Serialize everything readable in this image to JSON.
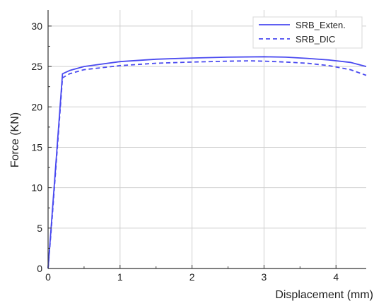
{
  "chart_data": {
    "type": "line",
    "xlabel": "Displacement (mm)",
    "ylabel": "Force (KN)",
    "xlim": [
      0,
      4.42
    ],
    "ylim": [
      0,
      32
    ],
    "x_ticks": [
      0,
      1,
      2,
      3,
      4
    ],
    "y_ticks": [
      0,
      5,
      10,
      15,
      20,
      25,
      30
    ],
    "grid": true,
    "legend_position": "top-right",
    "color": "#4a4af0",
    "series": [
      {
        "name": "SRB_Exten.",
        "style": "solid",
        "points": [
          [
            0,
            0
          ],
          [
            0.05,
            6.0
          ],
          [
            0.1,
            12.0
          ],
          [
            0.15,
            18.0
          ],
          [
            0.2,
            24.1
          ],
          [
            0.3,
            24.5
          ],
          [
            0.5,
            25.0
          ],
          [
            1.0,
            25.6
          ],
          [
            1.5,
            25.9
          ],
          [
            2.0,
            26.05
          ],
          [
            2.5,
            26.15
          ],
          [
            3.0,
            26.2
          ],
          [
            3.3,
            26.15
          ],
          [
            3.6,
            26.0
          ],
          [
            3.9,
            25.8
          ],
          [
            4.2,
            25.5
          ],
          [
            4.42,
            25.0
          ]
        ]
      },
      {
        "name": "SRB_DIC",
        "style": "dashed",
        "points": [
          [
            0,
            0
          ],
          [
            0.05,
            5.5
          ],
          [
            0.1,
            11.5
          ],
          [
            0.15,
            17.5
          ],
          [
            0.2,
            23.6
          ],
          [
            0.3,
            24.1
          ],
          [
            0.5,
            24.6
          ],
          [
            1.0,
            25.1
          ],
          [
            1.5,
            25.4
          ],
          [
            2.0,
            25.55
          ],
          [
            2.5,
            25.65
          ],
          [
            2.8,
            25.7
          ],
          [
            3.0,
            25.65
          ],
          [
            3.3,
            25.55
          ],
          [
            3.6,
            25.4
          ],
          [
            3.9,
            25.1
          ],
          [
            4.2,
            24.6
          ],
          [
            4.42,
            23.9
          ]
        ]
      }
    ]
  }
}
